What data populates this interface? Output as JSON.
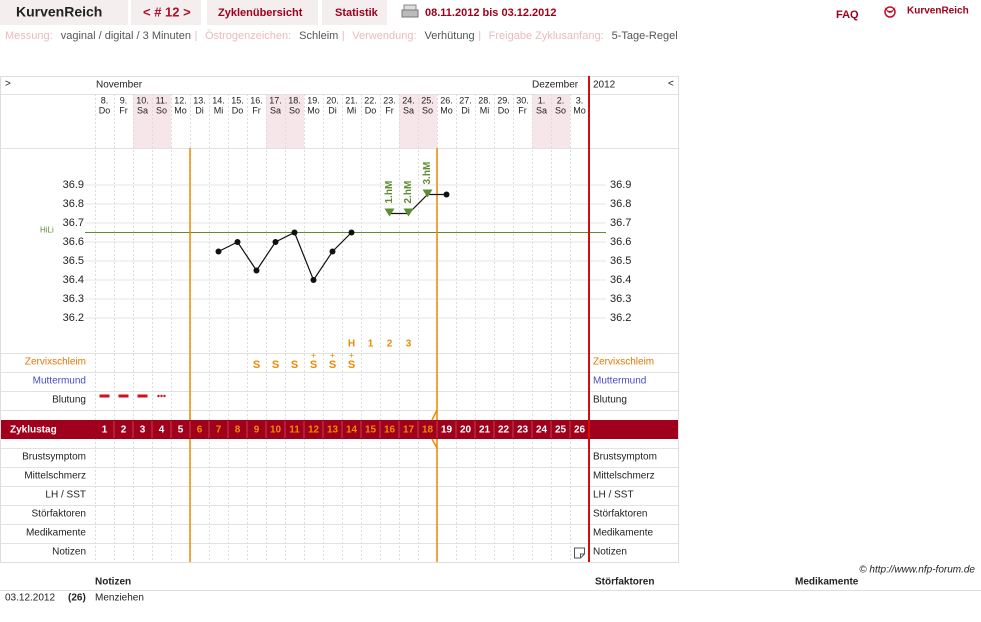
{
  "header": {
    "app_name": "KurvenReich",
    "cycle_nav": "< # 12 >",
    "tabs": [
      "Zyklenübersicht",
      "Statistik"
    ],
    "date_range": "08.11.2012 bis 03.12.2012",
    "faq": "FAQ",
    "logo": "KurvenReich"
  },
  "settings": [
    {
      "label": "Messung:",
      "value": "vaginal / digital / 3 Minuten"
    },
    {
      "label": "Östrogenzeichen:",
      "value": "Schleim"
    },
    {
      "label": "Verwendung:",
      "value": "Verhütung"
    },
    {
      "label": "Freigabe Zyklusanfang:",
      "value": "5-Tage-Regel"
    }
  ],
  "chart": {
    "nav_prev": ">",
    "nav_next": "<",
    "months": [
      "November",
      "Dezember"
    ],
    "year": "2012",
    "dates": [
      "8.",
      "9.",
      "10.",
      "11.",
      "12.",
      "13.",
      "14.",
      "15.",
      "16.",
      "17.",
      "18.",
      "19.",
      "20.",
      "21.",
      "22.",
      "23.",
      "24.",
      "25.",
      "26.",
      "27.",
      "28.",
      "29.",
      "30.",
      "1.",
      "2.",
      "3."
    ],
    "weekdays": [
      "Do",
      "Fr",
      "Sa",
      "So",
      "Mo",
      "Di",
      "Mi",
      "Do",
      "Fr",
      "Sa",
      "So",
      "Mo",
      "Di",
      "Mi",
      "Do",
      "Fr",
      "Sa",
      "So",
      "Mo",
      "Di",
      "Mi",
      "Do",
      "Fr",
      "Sa",
      "So",
      "Mo"
    ],
    "temperature": {
      "values": [
        null,
        null,
        null,
        null,
        null,
        null,
        36.55,
        36.6,
        36.45,
        36.6,
        36.65,
        36.4,
        36.55,
        36.65,
        null,
        36.75,
        36.75,
        36.85,
        36.85,
        null,
        null,
        null,
        null,
        null,
        null,
        null
      ],
      "ylim": [
        36.0,
        37.1
      ],
      "yticks": [
        36.2,
        36.3,
        36.4,
        36.5,
        36.6,
        36.7,
        36.8,
        36.9
      ]
    },
    "hili": {
      "label": "HiLi",
      "value": 36.65
    },
    "higher_measurements": [
      null,
      null,
      null,
      null,
      null,
      null,
      null,
      null,
      null,
      null,
      null,
      null,
      null,
      null,
      null,
      "1.hM",
      "2.hM",
      "3.hM",
      null,
      null,
      null,
      null,
      null,
      null,
      null,
      null
    ],
    "peak_row": [
      null,
      null,
      null,
      null,
      null,
      null,
      null,
      null,
      null,
      null,
      null,
      null,
      null,
      "H",
      "1",
      "2",
      "3",
      null,
      null,
      null,
      null,
      null,
      null,
      null,
      null,
      null
    ],
    "cervical": [
      null,
      null,
      null,
      null,
      null,
      null,
      null,
      null,
      {
        "symbol": "S"
      },
      {
        "symbol": "S"
      },
      {
        "symbol": "S"
      },
      {
        "symbol": "S",
        "sign": "+"
      },
      {
        "symbol": "S",
        "sign": "+"
      },
      {
        "symbol": "S",
        "sign": "+"
      },
      null,
      null,
      null,
      null,
      null,
      null,
      null,
      null,
      null,
      null,
      null,
      null
    ],
    "upper_rows": [
      "Zervixschleim",
      "Muttermund",
      "Blutung"
    ],
    "cycle_label": "Zyklustag",
    "cycle_days": [
      1,
      2,
      3,
      4,
      5,
      6,
      7,
      8,
      9,
      10,
      11,
      12,
      13,
      14,
      15,
      16,
      17,
      18,
      19,
      20,
      21,
      22,
      23,
      24,
      25,
      26
    ],
    "lower_rows": [
      "Brustsymptom",
      "Mittelschmerz",
      "LH / SST",
      "Störfaktoren",
      "Medikamente",
      "Notizen"
    ]
  },
  "copyright": "© http://www.nfp-forum.de",
  "notes_table": {
    "columns": [
      "Notizen",
      "Störfaktoren",
      "Medikamente"
    ],
    "rows": [
      [
        "03.12.2012",
        "(26)",
        "Menziehen"
      ]
    ]
  }
}
